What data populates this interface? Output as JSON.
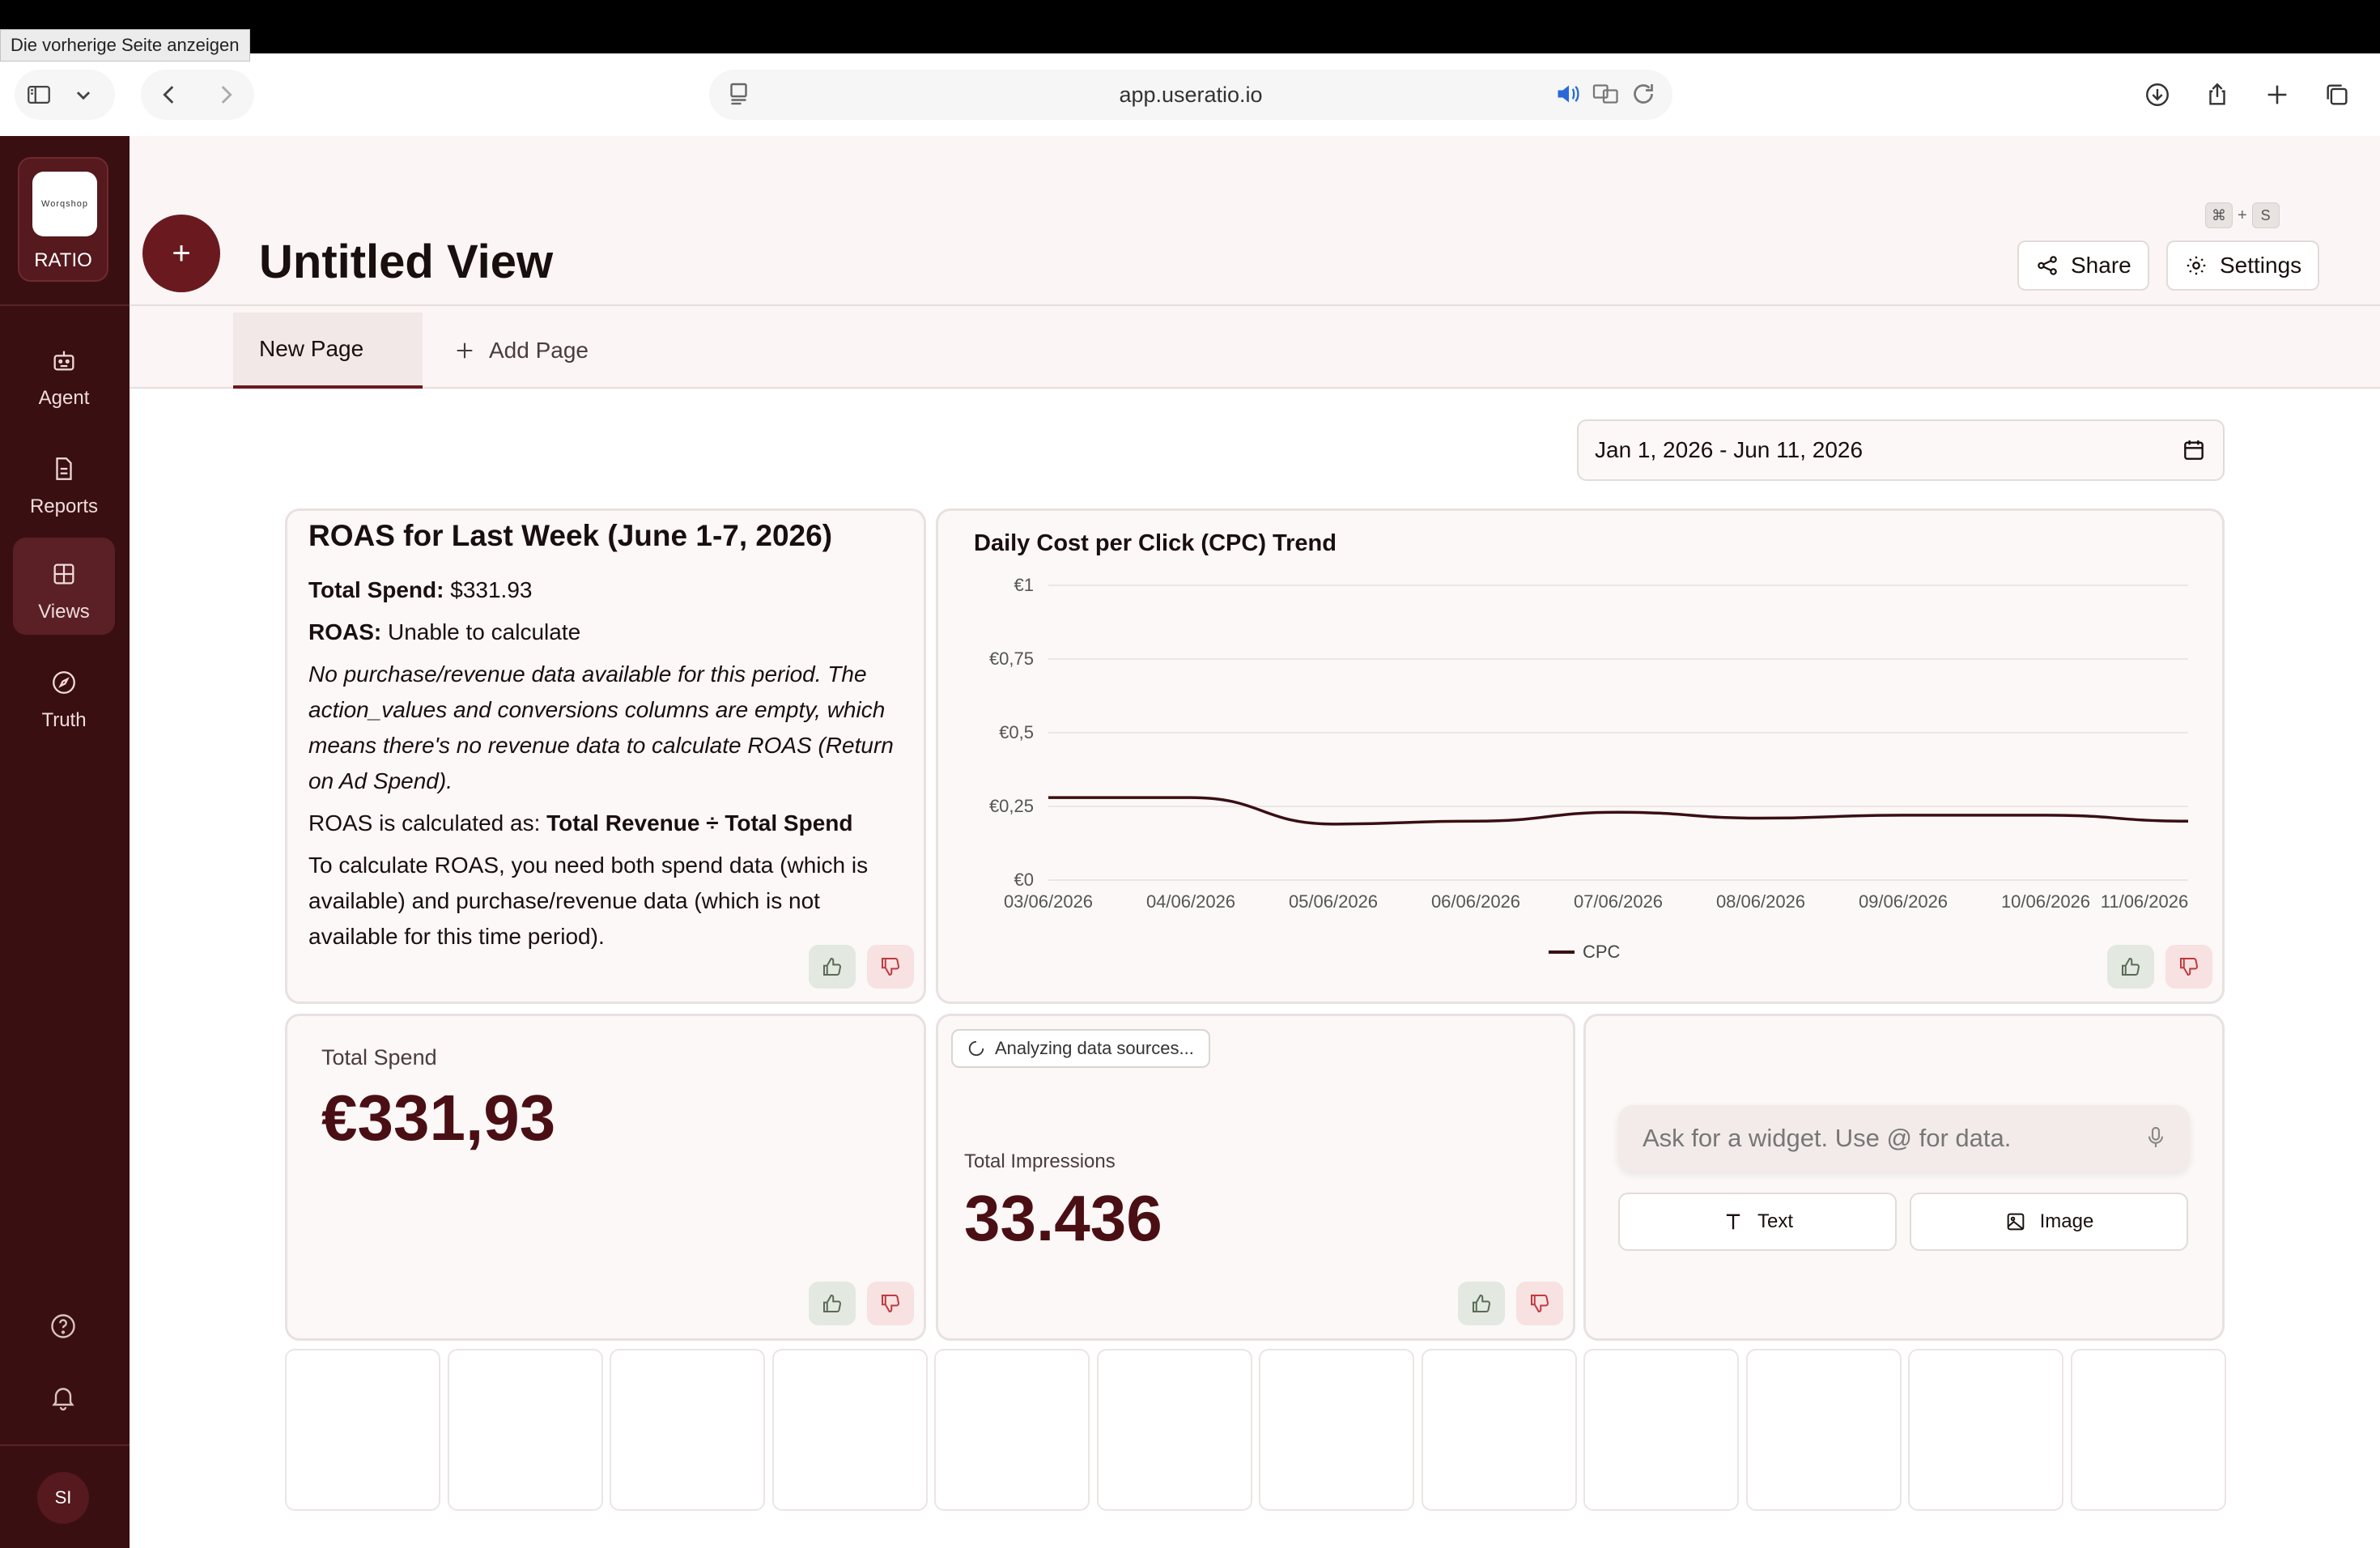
{
  "tooltip": "Die vorherige Seite anzeigen",
  "browser": {
    "url": "app.useratio.io"
  },
  "sidebar": {
    "logo_mark": "Worqshop",
    "brand": "RATIO",
    "items": [
      {
        "label": "Agent",
        "icon": "robot-icon"
      },
      {
        "label": "Reports",
        "icon": "document-icon"
      },
      {
        "label": "Views",
        "icon": "grid-icon"
      },
      {
        "label": "Truth",
        "icon": "compass-icon"
      }
    ],
    "active": "Views",
    "avatar": "SI"
  },
  "header": {
    "title": "Untitled View",
    "shortcut_plus": "+",
    "shortcut_key": "S",
    "share_label": "Share",
    "settings_label": "Settings"
  },
  "tabs": {
    "active_label": "New Page",
    "add_label": "Add Page"
  },
  "date_range": "Jan 1, 2026 - Jun 11, 2026",
  "roas_card": {
    "title": "ROAS for Last Week (June 1-7, 2026)",
    "total_spend_label": "Total Spend:",
    "total_spend_value": " $331.93",
    "roas_label": "ROAS:",
    "roas_value": " Unable to calculate",
    "explanation": "No purchase/revenue data available for this period. The action_values and conversions columns are empty, which means there's no revenue data to calculate ROAS (Return on Ad Spend).",
    "formula_prefix": "ROAS is calculated as: ",
    "formula": "Total Revenue ÷ Total Spend",
    "note": "To calculate ROAS, you need both spend data (which is available) and purchase/revenue data (which is not available for this time period)."
  },
  "chart_data": {
    "type": "line",
    "title": "Daily Cost per Click (CPC) Trend",
    "x": [
      "03/06/2026",
      "04/06/2026",
      "05/06/2026",
      "06/06/2026",
      "07/06/2026",
      "08/06/2026",
      "09/06/2026",
      "10/06/2026",
      "11/06/2026"
    ],
    "y_ticks": [
      "€0",
      "€0,25",
      "€0,5",
      "€0,75",
      "€1"
    ],
    "ylim": [
      0,
      1
    ],
    "series": [
      {
        "name": "CPC",
        "values": [
          0.28,
          0.28,
          0.19,
          0.2,
          0.23,
          0.21,
          0.22,
          0.22,
          0.2
        ],
        "color": "#3a0f12"
      }
    ],
    "grid": true,
    "legend": "bottom-center"
  },
  "spend_card": {
    "label": "Total Spend",
    "value": "€331,93"
  },
  "impressions_card": {
    "status": "Analyzing data sources...",
    "label": "Total Impressions",
    "value": "33.436"
  },
  "widget_card": {
    "placeholder": "Ask for a widget. Use @ for data.",
    "text_label": "Text",
    "image_label": "Image"
  },
  "colors": {
    "sidebar": "#3a0f12",
    "accent": "#6a1a1f",
    "kpi": "#4a0f14"
  }
}
